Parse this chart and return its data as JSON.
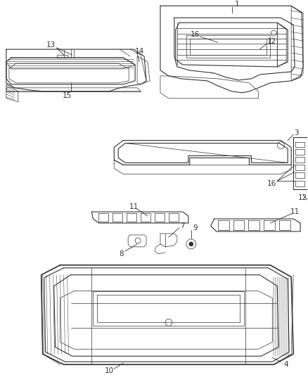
{
  "background_color": "#ffffff",
  "line_color": "#333333",
  "label_color": "#333333",
  "figsize": [
    4.38,
    5.33
  ],
  "dpi": 100
}
